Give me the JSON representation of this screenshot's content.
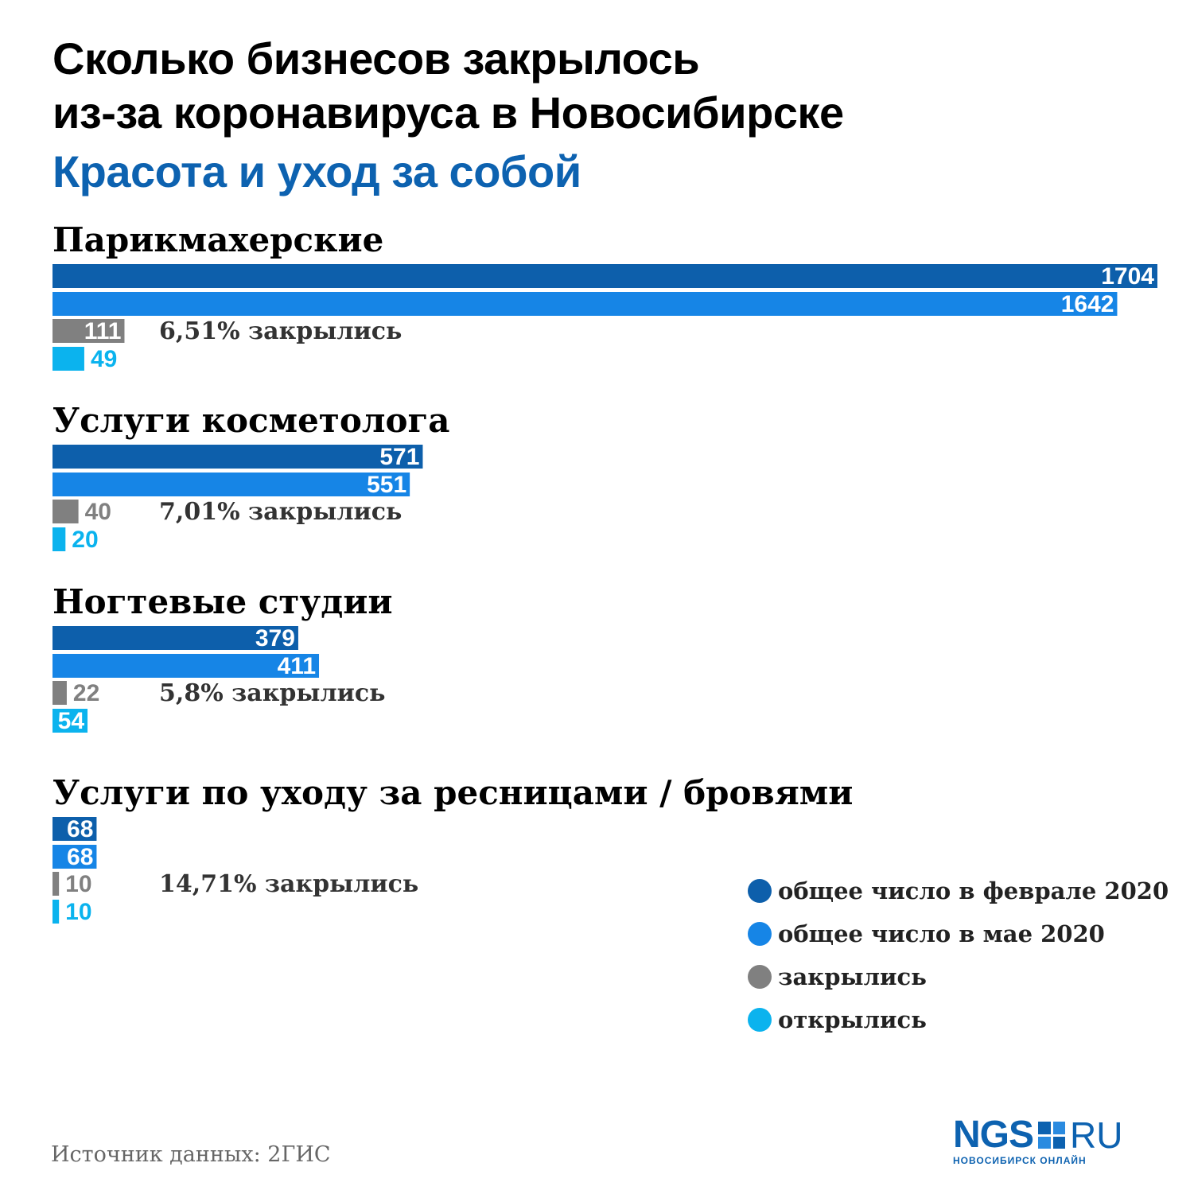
{
  "header": {
    "title_line1": "Сколько бизнесов закрылось",
    "title_line2": "из-за коронавируса в Новосибирске",
    "subtitle": "Красота и уход за собой"
  },
  "colors": {
    "feb": "#0d5fab",
    "may": "#1685e6",
    "closed": "#808080",
    "opened": "#0bb3ee",
    "title_blue": "#0d62b0"
  },
  "chart_data": {
    "type": "bar",
    "orientation": "horizontal",
    "title": "Сколько бизнесов закрылось из-за коронавируса в Новосибирске",
    "subtitle": "Красота и уход за собой",
    "xlim": [
      0,
      1704
    ],
    "grid": false,
    "legend_placement": "bottom-right",
    "series_names": [
      "общее число в феврале 2020",
      "общее число в мае 2020",
      "закрылись",
      "открылись"
    ],
    "groups": [
      {
        "category": "Парикмахерские",
        "values": [
          1704,
          1642,
          111,
          49
        ],
        "labels": [
          "1704",
          "1642",
          "111",
          "49"
        ],
        "percent_label": "6,51% закрылись"
      },
      {
        "category": "Услуги косметолога",
        "values": [
          571,
          551,
          40,
          20
        ],
        "labels": [
          "571",
          "551",
          "40",
          "20"
        ],
        "percent_label": "7,01% закрылись"
      },
      {
        "category": "Ногтевые студии",
        "values": [
          379,
          411,
          22,
          54
        ],
        "labels": [
          "379",
          "411",
          "22",
          "54"
        ],
        "percent_label": "5,8% закрылись"
      },
      {
        "category": "Услуги по уходу за ресницами / бровями",
        "values": [
          68,
          68,
          10,
          10
        ],
        "labels": [
          "68",
          "68",
          "10",
          "10"
        ],
        "percent_label": "14,71% закрылись"
      }
    ]
  },
  "legend": {
    "items": [
      {
        "label": "общее число в феврале 2020",
        "color": "#0d5fab"
      },
      {
        "label": "общее число в мае 2020",
        "color": "#1685e6"
      },
      {
        "label": "закрылись",
        "color": "#808080"
      },
      {
        "label": "открылись",
        "color": "#0bb3ee"
      }
    ]
  },
  "footer": {
    "source": "Источник данных: 2ГИС",
    "logo_left": "NGS",
    "logo_right": "RU",
    "logo_sub": "НОВОСИБИРСК ОНЛАЙН"
  }
}
